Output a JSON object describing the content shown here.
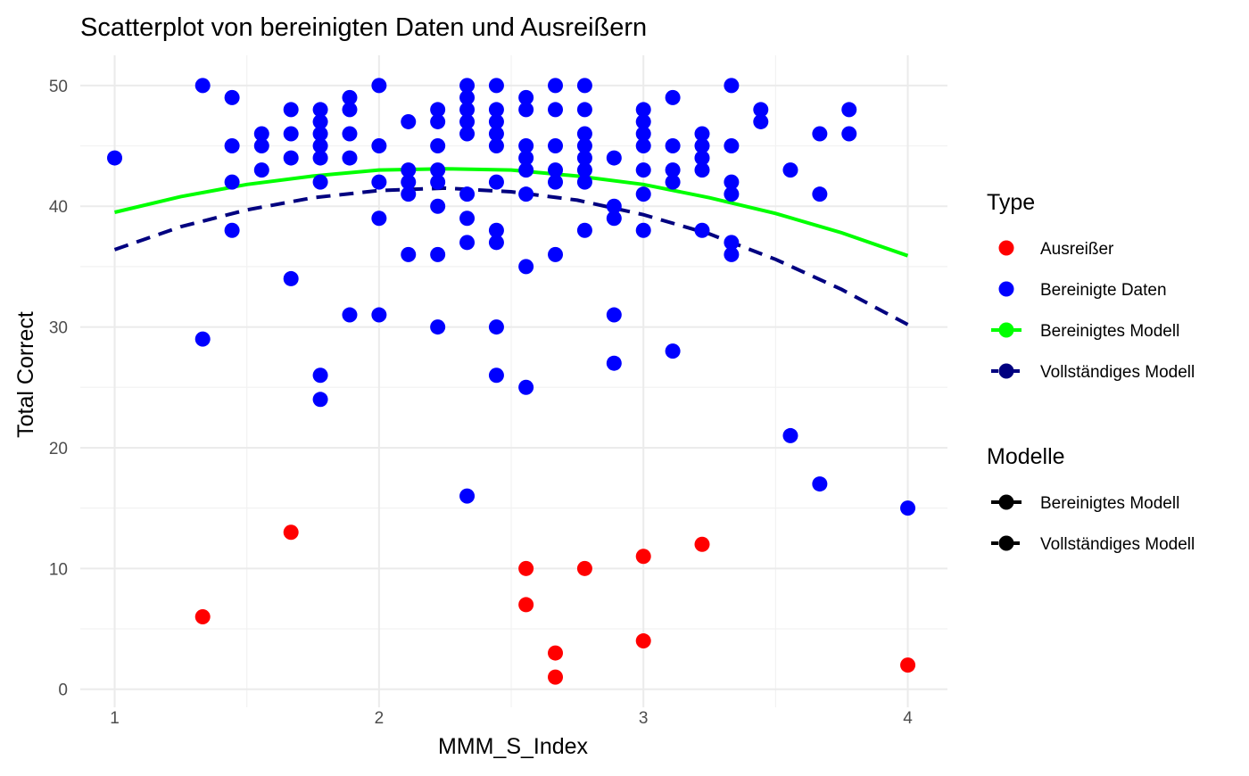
{
  "chart_data": {
    "type": "scatter",
    "title": "Scatterplot von bereinigten Daten und Ausreißern",
    "xlabel": "MMM_S_Index",
    "ylabel": "Total Correct",
    "xlim": [
      0.87,
      4.15
    ],
    "ylim": [
      -1.5,
      52.5
    ],
    "x_ticks": [
      "1",
      "2",
      "3",
      "4"
    ],
    "y_ticks": [
      "0",
      "10",
      "20",
      "30",
      "40",
      "50"
    ],
    "grid": true,
    "legend_position": "right",
    "series": [
      {
        "name": "Bereinigte Daten",
        "kind": "points",
        "color": "#0000FF",
        "points": [
          [
            1,
            44
          ],
          [
            1.333,
            50
          ],
          [
            1.333,
            29
          ],
          [
            1.444,
            49
          ],
          [
            1.444,
            45
          ],
          [
            1.444,
            42
          ],
          [
            1.444,
            38
          ],
          [
            1.556,
            46
          ],
          [
            1.556,
            45
          ],
          [
            1.556,
            43
          ],
          [
            1.667,
            48
          ],
          [
            1.667,
            46
          ],
          [
            1.667,
            44
          ],
          [
            1.667,
            34
          ],
          [
            1.778,
            48
          ],
          [
            1.778,
            47
          ],
          [
            1.778,
            46
          ],
          [
            1.778,
            45
          ],
          [
            1.778,
            44
          ],
          [
            1.778,
            42
          ],
          [
            1.778,
            26
          ],
          [
            1.778,
            24
          ],
          [
            1.889,
            49
          ],
          [
            1.889,
            48
          ],
          [
            1.889,
            46
          ],
          [
            1.889,
            44
          ],
          [
            1.889,
            31
          ],
          [
            2,
            50
          ],
          [
            2,
            45
          ],
          [
            2,
            42
          ],
          [
            2,
            39
          ],
          [
            2,
            31
          ],
          [
            2.111,
            47
          ],
          [
            2.111,
            43
          ],
          [
            2.111,
            42
          ],
          [
            2.111,
            41
          ],
          [
            2.111,
            36
          ],
          [
            2.222,
            48
          ],
          [
            2.222,
            47
          ],
          [
            2.222,
            45
          ],
          [
            2.222,
            43
          ],
          [
            2.222,
            42
          ],
          [
            2.222,
            40
          ],
          [
            2.222,
            36
          ],
          [
            2.222,
            30
          ],
          [
            2.333,
            50
          ],
          [
            2.333,
            49
          ],
          [
            2.333,
            48
          ],
          [
            2.333,
            47
          ],
          [
            2.333,
            46
          ],
          [
            2.333,
            41
          ],
          [
            2.333,
            39
          ],
          [
            2.333,
            37
          ],
          [
            2.333,
            16
          ],
          [
            2.444,
            50
          ],
          [
            2.444,
            48
          ],
          [
            2.444,
            47
          ],
          [
            2.444,
            46
          ],
          [
            2.444,
            45
          ],
          [
            2.444,
            42
          ],
          [
            2.444,
            38
          ],
          [
            2.444,
            37
          ],
          [
            2.444,
            30
          ],
          [
            2.444,
            26
          ],
          [
            2.556,
            49
          ],
          [
            2.556,
            48
          ],
          [
            2.556,
            45
          ],
          [
            2.556,
            44
          ],
          [
            2.556,
            43
          ],
          [
            2.556,
            41
          ],
          [
            2.556,
            35
          ],
          [
            2.556,
            25
          ],
          [
            2.667,
            50
          ],
          [
            2.667,
            48
          ],
          [
            2.667,
            45
          ],
          [
            2.667,
            43
          ],
          [
            2.667,
            42
          ],
          [
            2.667,
            36
          ],
          [
            2.778,
            50
          ],
          [
            2.778,
            48
          ],
          [
            2.778,
            46
          ],
          [
            2.778,
            45
          ],
          [
            2.778,
            44
          ],
          [
            2.778,
            43
          ],
          [
            2.778,
            42
          ],
          [
            2.778,
            38
          ],
          [
            2.889,
            44
          ],
          [
            2.889,
            40
          ],
          [
            2.889,
            39
          ],
          [
            2.889,
            31
          ],
          [
            2.889,
            27
          ],
          [
            3,
            48
          ],
          [
            3,
            47
          ],
          [
            3,
            46
          ],
          [
            3,
            45
          ],
          [
            3,
            43
          ],
          [
            3,
            41
          ],
          [
            3,
            38
          ],
          [
            3.111,
            49
          ],
          [
            3.111,
            45
          ],
          [
            3.111,
            43
          ],
          [
            3.111,
            42
          ],
          [
            3.111,
            28
          ],
          [
            3.222,
            46
          ],
          [
            3.222,
            45
          ],
          [
            3.222,
            44
          ],
          [
            3.222,
            43
          ],
          [
            3.222,
            38
          ],
          [
            3.333,
            50
          ],
          [
            3.333,
            45
          ],
          [
            3.333,
            42
          ],
          [
            3.333,
            41
          ],
          [
            3.333,
            37
          ],
          [
            3.333,
            36
          ],
          [
            3.444,
            48
          ],
          [
            3.444,
            47
          ],
          [
            3.556,
            43
          ],
          [
            3.556,
            21
          ],
          [
            3.667,
            46
          ],
          [
            3.667,
            41
          ],
          [
            3.667,
            17
          ],
          [
            3.778,
            48
          ],
          [
            3.778,
            46
          ],
          [
            4,
            15
          ]
        ]
      },
      {
        "name": "Ausreißer",
        "kind": "points",
        "color": "#FF0000",
        "points": [
          [
            1.333,
            6
          ],
          [
            1.667,
            13
          ],
          [
            2.556,
            10
          ],
          [
            2.556,
            7
          ],
          [
            2.667,
            3
          ],
          [
            2.667,
            1
          ],
          [
            2.778,
            10
          ],
          [
            3,
            11
          ],
          [
            3,
            4
          ],
          [
            3.222,
            12
          ],
          [
            4,
            2
          ]
        ]
      },
      {
        "name": "Bereinigtes Modell",
        "kind": "line",
        "color": "#00FF00",
        "dash": "solid",
        "points": [
          [
            1,
            39.5
          ],
          [
            1.25,
            40.8
          ],
          [
            1.5,
            41.8
          ],
          [
            1.75,
            42.5
          ],
          [
            2,
            43.0
          ],
          [
            2.25,
            43.1
          ],
          [
            2.5,
            43.0
          ],
          [
            2.75,
            42.5
          ],
          [
            3,
            41.8
          ],
          [
            3.25,
            40.7
          ],
          [
            3.5,
            39.4
          ],
          [
            3.75,
            37.8
          ],
          [
            4,
            35.9
          ]
        ]
      },
      {
        "name": "Vollständiges Modell",
        "kind": "line",
        "color": "#000080",
        "dash": "dashed",
        "points": [
          [
            1,
            36.4
          ],
          [
            1.25,
            38.3
          ],
          [
            1.5,
            39.7
          ],
          [
            1.75,
            40.7
          ],
          [
            2,
            41.3
          ],
          [
            2.25,
            41.5
          ],
          [
            2.5,
            41.2
          ],
          [
            2.75,
            40.5
          ],
          [
            3,
            39.3
          ],
          [
            3.25,
            37.7
          ],
          [
            3.5,
            35.6
          ],
          [
            3.75,
            33.1
          ],
          [
            4,
            30.2
          ]
        ]
      }
    ],
    "legends": [
      {
        "title": "Type",
        "entries": [
          {
            "label": "Ausreißer",
            "color": "#FF0000",
            "kind": "point"
          },
          {
            "label": "Bereinigte Daten",
            "color": "#0000FF",
            "kind": "point"
          },
          {
            "label": "Bereinigtes Modell",
            "color": "#00FF00",
            "kind": "line-point",
            "dash": "solid"
          },
          {
            "label": "Vollständiges Modell",
            "color": "#000080",
            "kind": "line-point",
            "dash": "dashed"
          }
        ]
      },
      {
        "title": "Modelle",
        "entries": [
          {
            "label": "Bereinigtes Modell",
            "color": "#000000",
            "kind": "line-point",
            "dash": "solid"
          },
          {
            "label": "Vollständiges Modell",
            "color": "#000000",
            "kind": "line-point",
            "dash": "dashed"
          }
        ]
      }
    ]
  }
}
